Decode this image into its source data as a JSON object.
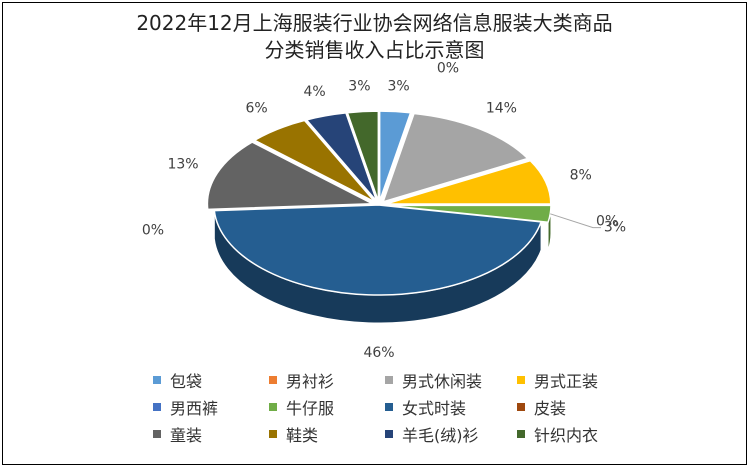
{
  "window": {
    "title_line1": "2022年12月上海服装行业协会网络信息服装大类商品",
    "title_line2": "分类销售收入占比示意图"
  },
  "chart_data": {
    "type": "pie",
    "title": "2022年12月上海服装行业协会网络信息服装大类商品分类销售收入占比示意图",
    "categories": [
      "包袋",
      "男衬衫",
      "男式休闲装",
      "男式正装",
      "男西裤",
      "牛仔服",
      "女式时装",
      "皮装",
      "童装",
      "鞋类",
      "羊毛(绒)衫",
      "针织内衣"
    ],
    "values": [
      3,
      0,
      14,
      8,
      0,
      3,
      46,
      0,
      13,
      6,
      4,
      3
    ],
    "labels": [
      "3%",
      "0%",
      "14%",
      "8%",
      "0%",
      "3%",
      "46%",
      "0%",
      "13%",
      "6%",
      "4%",
      "3%"
    ],
    "colors": [
      "#5b9bd5",
      "#ed7d31",
      "#a5a5a5",
      "#ffc000",
      "#4472c4",
      "#70ad47",
      "#255e91",
      "#9e480e",
      "#636363",
      "#997300",
      "#264478",
      "#43682b"
    ],
    "legend_position": "bottom"
  }
}
